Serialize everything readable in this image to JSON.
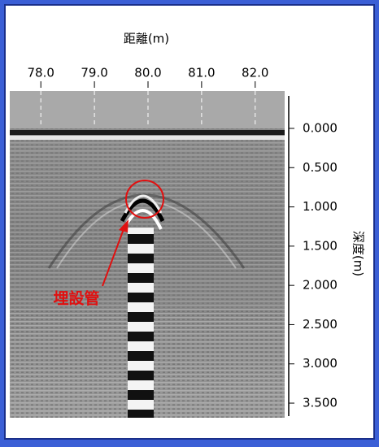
{
  "chart_data": {
    "type": "radargram",
    "x_label": "距離(m)",
    "y_label": "深度(m)",
    "annotation": "埋設管",
    "xlim": [
      77.42,
      82.55
    ],
    "xticks": [
      {
        "value": 78,
        "label": "78.0"
      },
      {
        "value": 79,
        "label": "79.0"
      },
      {
        "value": 80,
        "label": "80.0"
      },
      {
        "value": 81,
        "label": "81.0"
      },
      {
        "value": 82,
        "label": "82.0"
      }
    ],
    "ylim": [
      -0.476,
      3.686
    ],
    "yticks": [
      {
        "value": 0,
        "label": "0.000"
      },
      {
        "value": 0.5,
        "label": "0.500"
      },
      {
        "value": 1,
        "label": "1.000"
      },
      {
        "value": 1.5,
        "label": "1.500"
      },
      {
        "value": 2,
        "label": "2.000"
      },
      {
        "value": 2.5,
        "label": "2.500"
      },
      {
        "value": 3,
        "label": "3.000"
      },
      {
        "value": 3.5,
        "label": "3.500"
      }
    ]
  }
}
